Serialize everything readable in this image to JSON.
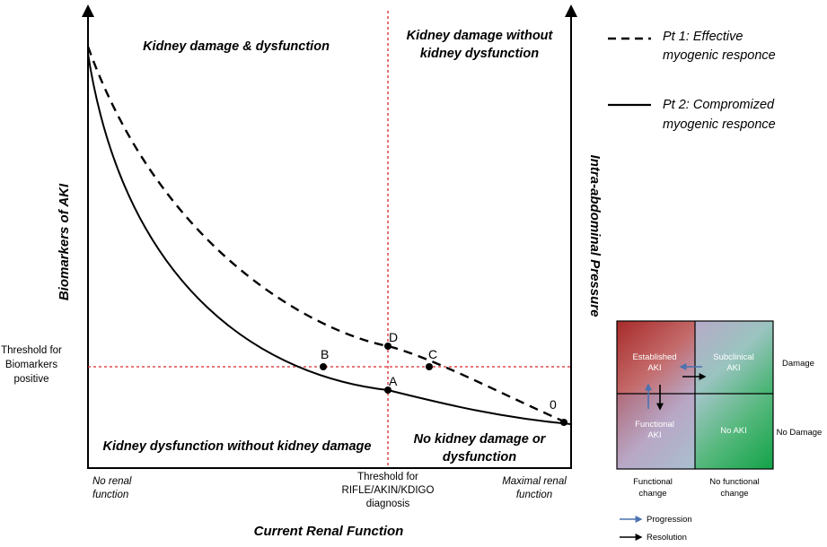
{
  "diagram": {
    "quadrants": {
      "top_left": "Kidney damage & dysfunction",
      "top_right_line1": "Kidney damage without",
      "top_right_line2": "kidney dysfunction",
      "bottom_left": "Kidney dysfunction without kidney damage",
      "bottom_right_line1": "No kidney damage or",
      "bottom_right_line2": "dysfunction"
    },
    "axes": {
      "left_y": "Biomarkers of AKI",
      "right_y": "Intra-abdominal Pressure",
      "x": "Current Renal Function",
      "x_min_line1": "No renal",
      "x_min_line2": "function",
      "x_max_line1": "Maximal renal",
      "x_max_line2": "function"
    },
    "thresholds": {
      "biomarker_line1": "Threshold for",
      "biomarker_line2": "Biomarkers",
      "biomarker_line3": "positive",
      "diagnosis_line1": "Threshold for",
      "diagnosis_line2": "RIFLE/AKIN/KDIGO",
      "diagnosis_line3": "diagnosis"
    },
    "points": {
      "A": "A",
      "B": "B",
      "C": "C",
      "D": "D",
      "zero": "0"
    },
    "legend": {
      "pt1_line1": "Pt 1: Effective",
      "pt1_line2": "myogenic responce",
      "pt2_line1": "Pt 2: Compromized",
      "pt2_line2": "myogenic responce"
    },
    "matrix": {
      "established_line1": "Established",
      "established_line2": "AKI",
      "subclinical_line1": "Subclinical",
      "subclinical_line2": "AKI",
      "functional_line1": "Functional",
      "functional_line2": "AKI",
      "no_aki": "No AKI",
      "row_damage": "Damage",
      "row_no_damage": "No Damage",
      "col_functional_line1": "Functional",
      "col_functional_line2": "change",
      "col_no_functional_line1": "No functional",
      "col_no_functional_line2": "change",
      "key_progression": "Progression",
      "key_resolution": "Resolution"
    },
    "colors": {
      "threshold": "#d9262a",
      "progression_arrow": "#4a72b0",
      "resolution_arrow": "#000000",
      "established": "#b53a3a",
      "no_aki": "#1fa84f"
    }
  }
}
